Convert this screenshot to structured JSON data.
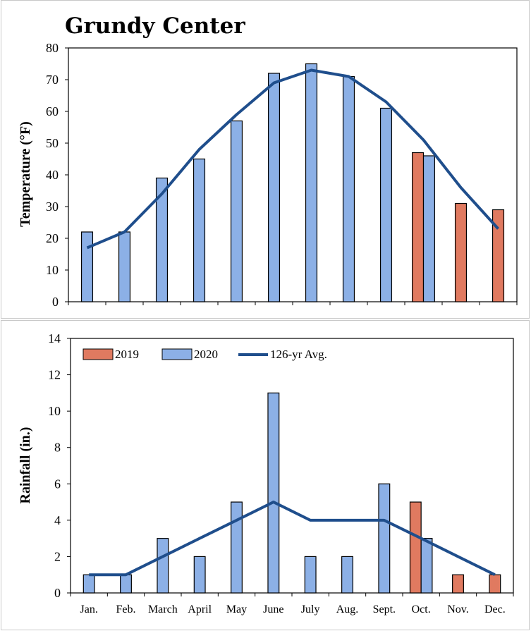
{
  "title": "Grundy Center",
  "colors": {
    "y2019": "#e07a60",
    "y2020": "#8cb0e6",
    "avg": "#1f4e8c",
    "bar_stroke": "#000000"
  },
  "legend": {
    "y2019": "2019",
    "y2020": "2020",
    "avg": "126-yr Avg."
  },
  "chart_data": [
    {
      "type": "bar",
      "title": "Grundy Center",
      "ylabel": "Temperature (°F)",
      "ylim": [
        0,
        80
      ],
      "yticks": [
        0,
        10,
        20,
        30,
        40,
        50,
        60,
        70,
        80
      ],
      "categories": [
        "Jan.",
        "Feb.",
        "March",
        "April",
        "May",
        "June",
        "July",
        "Aug.",
        "Sept.",
        "Oct.",
        "Nov.",
        "Dec."
      ],
      "series": [
        {
          "name": "2019",
          "values": [
            null,
            null,
            null,
            null,
            null,
            null,
            null,
            null,
            null,
            47,
            31,
            29
          ]
        },
        {
          "name": "2020",
          "values": [
            22,
            22,
            39,
            45,
            57,
            72,
            75,
            71,
            61,
            46,
            null,
            null
          ]
        },
        {
          "name": "126-yr Avg.",
          "type": "line",
          "values": [
            17,
            22,
            34,
            48,
            59,
            69,
            73,
            71,
            63,
            51,
            36,
            23
          ]
        }
      ]
    },
    {
      "type": "bar",
      "ylabel": "Rainfall (in.)",
      "ylim": [
        0,
        14
      ],
      "yticks": [
        0,
        2,
        4,
        6,
        8,
        10,
        12,
        14
      ],
      "categories": [
        "Jan.",
        "Feb.",
        "March",
        "April",
        "May",
        "June",
        "July",
        "Aug.",
        "Sept.",
        "Oct.",
        "Nov.",
        "Dec."
      ],
      "series": [
        {
          "name": "2019",
          "values": [
            null,
            null,
            null,
            null,
            null,
            null,
            null,
            null,
            null,
            5,
            1,
            1
          ]
        },
        {
          "name": "2020",
          "values": [
            1,
            1,
            3,
            2,
            5,
            11,
            2,
            2,
            6,
            3,
            null,
            null
          ]
        },
        {
          "name": "126-yr Avg.",
          "type": "line",
          "values": [
            1,
            1,
            2,
            3,
            4,
            5,
            4,
            4,
            4,
            3,
            2,
            1
          ]
        }
      ],
      "legend_position": "top-left"
    }
  ]
}
